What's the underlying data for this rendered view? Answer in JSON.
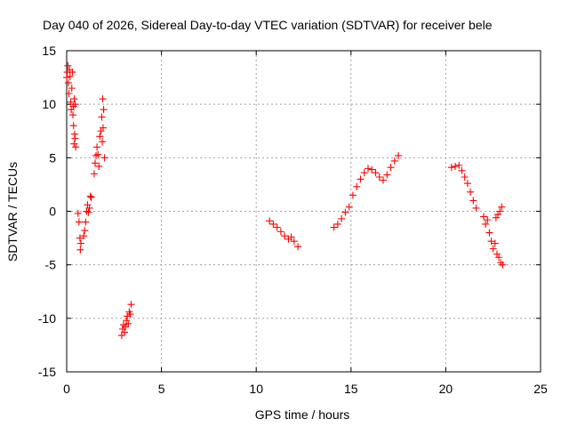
{
  "chart_data": {
    "type": "scatter",
    "title": "Day 040 of 2026, Sidereal Day-to-day VTEC variation (SDTVAR) for receiver bele",
    "xlabel": "GPS time / hours",
    "ylabel": "SDTVAR / TECUs",
    "xlim": [
      0,
      25
    ],
    "ylim": [
      -15,
      15
    ],
    "xticks": [
      0,
      5,
      10,
      15,
      20,
      25
    ],
    "yticks": [
      -15,
      -10,
      -5,
      0,
      5,
      10,
      15
    ],
    "xtick_labels": [
      "0",
      "5",
      "10",
      "15",
      "20",
      "25"
    ],
    "ytick_labels": [
      "-15",
      "-10",
      "-5",
      "0",
      "5",
      "10",
      "15"
    ],
    "grid": true,
    "marker": "+",
    "color": "#ff0000",
    "series": [
      {
        "name": "SDTVAR",
        "points": [
          [
            0.0,
            12.5
          ],
          [
            0.03,
            13.0
          ],
          [
            0.06,
            13.6
          ],
          [
            0.09,
            12.0
          ],
          [
            0.12,
            11.0
          ],
          [
            0.15,
            13.2
          ],
          [
            0.18,
            12.6
          ],
          [
            0.21,
            10.2
          ],
          [
            0.24,
            9.5
          ],
          [
            0.27,
            11.5
          ],
          [
            0.3,
            13.0
          ],
          [
            0.33,
            9.0
          ],
          [
            0.36,
            8.0
          ],
          [
            0.39,
            6.3
          ],
          [
            0.42,
            7.2
          ],
          [
            0.45,
            10.0
          ],
          [
            0.48,
            6.0
          ],
          [
            0.4,
            10.5
          ],
          [
            0.35,
            9.8
          ],
          [
            0.44,
            6.8
          ],
          [
            0.6,
            -0.2
          ],
          [
            0.65,
            -1.0
          ],
          [
            0.7,
            -2.5
          ],
          [
            0.72,
            -3.6
          ],
          [
            0.75,
            -3.0
          ],
          [
            0.9,
            -2.3
          ],
          [
            0.95,
            -1.8
          ],
          [
            1.0,
            -1.0
          ],
          [
            1.05,
            0.0
          ],
          [
            1.1,
            0.6
          ],
          [
            1.15,
            -0.1
          ],
          [
            1.2,
            0.3
          ],
          [
            1.25,
            1.4
          ],
          [
            1.3,
            1.3
          ],
          [
            1.45,
            3.5
          ],
          [
            1.5,
            4.5
          ],
          [
            1.55,
            5.2
          ],
          [
            1.6,
            6.0
          ],
          [
            1.65,
            5.3
          ],
          [
            1.7,
            4.2
          ],
          [
            1.75,
            7.0
          ],
          [
            1.8,
            7.5
          ],
          [
            1.85,
            8.8
          ],
          [
            1.9,
            10.5
          ],
          [
            1.95,
            9.5
          ],
          [
            2.0,
            5.0
          ],
          [
            1.88,
            6.5
          ],
          [
            1.92,
            7.8
          ],
          [
            2.9,
            -11.6
          ],
          [
            2.95,
            -11.0
          ],
          [
            3.0,
            -10.6
          ],
          [
            3.05,
            -11.3
          ],
          [
            3.1,
            -10.8
          ],
          [
            3.15,
            -10.2
          ],
          [
            3.2,
            -9.8
          ],
          [
            3.25,
            -10.5
          ],
          [
            3.3,
            -9.4
          ],
          [
            3.35,
            -9.6
          ],
          [
            3.4,
            -8.7
          ],
          [
            10.7,
            -0.9
          ],
          [
            10.9,
            -1.2
          ],
          [
            11.1,
            -1.5
          ],
          [
            11.3,
            -1.9
          ],
          [
            11.5,
            -2.3
          ],
          [
            11.7,
            -2.6
          ],
          [
            11.85,
            -2.4
          ],
          [
            12.0,
            -2.8
          ],
          [
            12.2,
            -3.3
          ],
          [
            14.1,
            -1.5
          ],
          [
            14.3,
            -1.2
          ],
          [
            14.5,
            -0.7
          ],
          [
            14.7,
            -0.1
          ],
          [
            14.9,
            0.4
          ],
          [
            15.1,
            1.5
          ],
          [
            15.3,
            2.3
          ],
          [
            15.5,
            3.0
          ],
          [
            15.7,
            3.6
          ],
          [
            15.9,
            4.0
          ],
          [
            16.1,
            3.9
          ],
          [
            16.3,
            3.6
          ],
          [
            16.5,
            3.2
          ],
          [
            16.7,
            2.9
          ],
          [
            16.9,
            3.4
          ],
          [
            17.1,
            4.1
          ],
          [
            17.3,
            4.7
          ],
          [
            17.5,
            5.2
          ],
          [
            20.3,
            4.1
          ],
          [
            20.5,
            4.2
          ],
          [
            20.7,
            4.3
          ],
          [
            20.85,
            3.8
          ],
          [
            21.0,
            3.2
          ],
          [
            21.15,
            2.6
          ],
          [
            21.3,
            1.8
          ],
          [
            21.45,
            1.0
          ],
          [
            21.6,
            0.3
          ],
          [
            22.0,
            -0.5
          ],
          [
            22.1,
            -1.2
          ],
          [
            22.2,
            -0.8
          ],
          [
            22.3,
            -2.0
          ],
          [
            22.4,
            -2.8
          ],
          [
            22.5,
            -3.5
          ],
          [
            22.6,
            -3.0
          ],
          [
            22.7,
            -4.0
          ],
          [
            22.8,
            -4.3
          ],
          [
            22.9,
            -4.8
          ],
          [
            23.0,
            -5.0
          ],
          [
            22.75,
            -0.3
          ],
          [
            22.85,
            0.0
          ],
          [
            22.95,
            0.4
          ],
          [
            22.65,
            -0.6
          ]
        ]
      }
    ]
  }
}
